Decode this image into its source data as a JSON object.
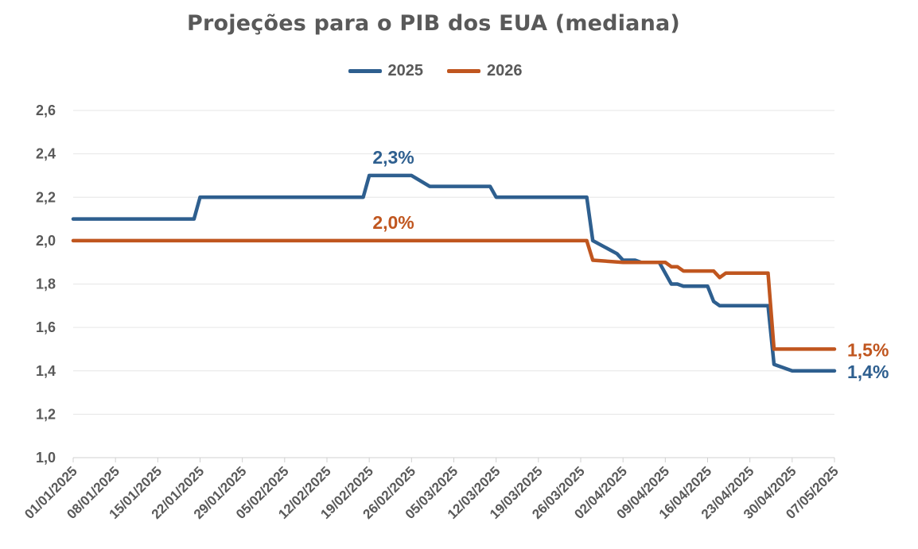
{
  "chart_data": {
    "type": "line",
    "title": "Projeções para o PIB dos EUA (mediana)",
    "xlabel": "",
    "ylabel": "",
    "ylim": [
      1.0,
      2.6
    ],
    "yticks": [
      "1,0",
      "1,2",
      "1,4",
      "1,6",
      "1,8",
      "2,0",
      "2,2",
      "2,4",
      "2,6"
    ],
    "xticks": [
      "01/01/2025",
      "08/01/2025",
      "15/01/2025",
      "22/01/2025",
      "29/01/2025",
      "05/02/2025",
      "12/02/2025",
      "19/02/2025",
      "26/02/2025",
      "05/03/2025",
      "12/03/2025",
      "19/03/2025",
      "26/03/2025",
      "02/04/2025",
      "09/04/2025",
      "16/04/2025",
      "23/04/2025",
      "30/04/2025",
      "07/05/2025"
    ],
    "x_range": [
      "2025-01-01",
      "2025-05-07"
    ],
    "grid": "horizontal",
    "legend_position": "top",
    "series": [
      {
        "name": "2025",
        "color": "#2E5F8F",
        "points": [
          [
            "2025-01-01",
            2.1
          ],
          [
            "2025-01-21",
            2.1
          ],
          [
            "2025-01-22",
            2.2
          ],
          [
            "2025-02-18",
            2.2
          ],
          [
            "2025-02-19",
            2.3
          ],
          [
            "2025-02-26",
            2.3
          ],
          [
            "2025-03-01",
            2.25
          ],
          [
            "2025-03-11",
            2.25
          ],
          [
            "2025-03-12",
            2.2
          ],
          [
            "2025-03-27",
            2.2
          ],
          [
            "2025-03-28",
            2.0
          ],
          [
            "2025-04-01",
            1.94
          ],
          [
            "2025-04-02",
            1.91
          ],
          [
            "2025-04-04",
            1.91
          ],
          [
            "2025-04-05",
            1.9
          ],
          [
            "2025-04-08",
            1.9
          ],
          [
            "2025-04-10",
            1.8
          ],
          [
            "2025-04-11",
            1.8
          ],
          [
            "2025-04-12",
            1.79
          ],
          [
            "2025-04-16",
            1.79
          ],
          [
            "2025-04-17",
            1.72
          ],
          [
            "2025-04-18",
            1.7
          ],
          [
            "2025-04-26",
            1.7
          ],
          [
            "2025-04-27",
            1.43
          ],
          [
            "2025-04-30",
            1.4
          ],
          [
            "2025-05-07",
            1.4
          ]
        ],
        "annotations": [
          {
            "x": "2025-02-23",
            "y": 2.3,
            "label": "2,3%"
          },
          {
            "x": "2025-05-07",
            "y": 1.4,
            "label": "1,4%"
          }
        ]
      },
      {
        "name": "2026",
        "color": "#C0561F",
        "points": [
          [
            "2025-01-01",
            2.0
          ],
          [
            "2025-03-27",
            2.0
          ],
          [
            "2025-03-28",
            1.91
          ],
          [
            "2025-04-02",
            1.9
          ],
          [
            "2025-04-09",
            1.9
          ],
          [
            "2025-04-10",
            1.88
          ],
          [
            "2025-04-11",
            1.88
          ],
          [
            "2025-04-12",
            1.86
          ],
          [
            "2025-04-17",
            1.86
          ],
          [
            "2025-04-18",
            1.83
          ],
          [
            "2025-04-19",
            1.85
          ],
          [
            "2025-04-26",
            1.85
          ],
          [
            "2025-04-27",
            1.5
          ],
          [
            "2025-05-07",
            1.5
          ]
        ],
        "annotations": [
          {
            "x": "2025-02-23",
            "y": 2.0,
            "label": "2,0%"
          },
          {
            "x": "2025-05-07",
            "y": 1.5,
            "label": "1,5%"
          }
        ]
      }
    ]
  }
}
